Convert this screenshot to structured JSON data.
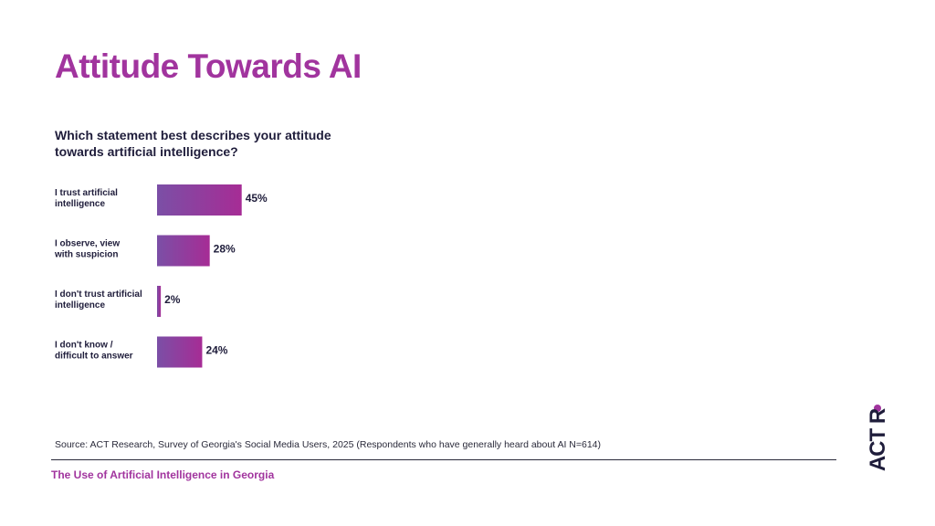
{
  "slide": {
    "title": "Attitude Towards AI",
    "footer_title": "The Use of Artificial Intelligence in Georgia",
    "source": "Source: ACT Research, Survey of Georgia's Social Media Users, 2025 (Respondents who have generally heard about AI N=614)"
  },
  "logo": {
    "text": "ACT R",
    "dot_color": "#a1349e",
    "text_color": "#1f1d3b"
  },
  "chart_data": {
    "type": "bar",
    "orientation": "horizontal",
    "title": "Which statement best describes your attitude towards artificial intelligence?",
    "categories": [
      [
        "I trust artificial",
        "intelligence"
      ],
      [
        "I observe, view",
        "with suspicion"
      ],
      [
        "I don't trust artificial",
        "intelligence"
      ],
      [
        "I don't know /",
        "difficult to answer"
      ]
    ],
    "values": [
      45,
      28,
      2,
      24
    ],
    "value_labels": [
      "45%",
      "28%",
      "2%",
      "24%"
    ],
    "unit": "%",
    "xlim": [
      0,
      100
    ],
    "grid": false,
    "legend": "none",
    "colors": {
      "gradient_start": "#7b4fa6",
      "gradient_end": "#a62c95"
    }
  }
}
